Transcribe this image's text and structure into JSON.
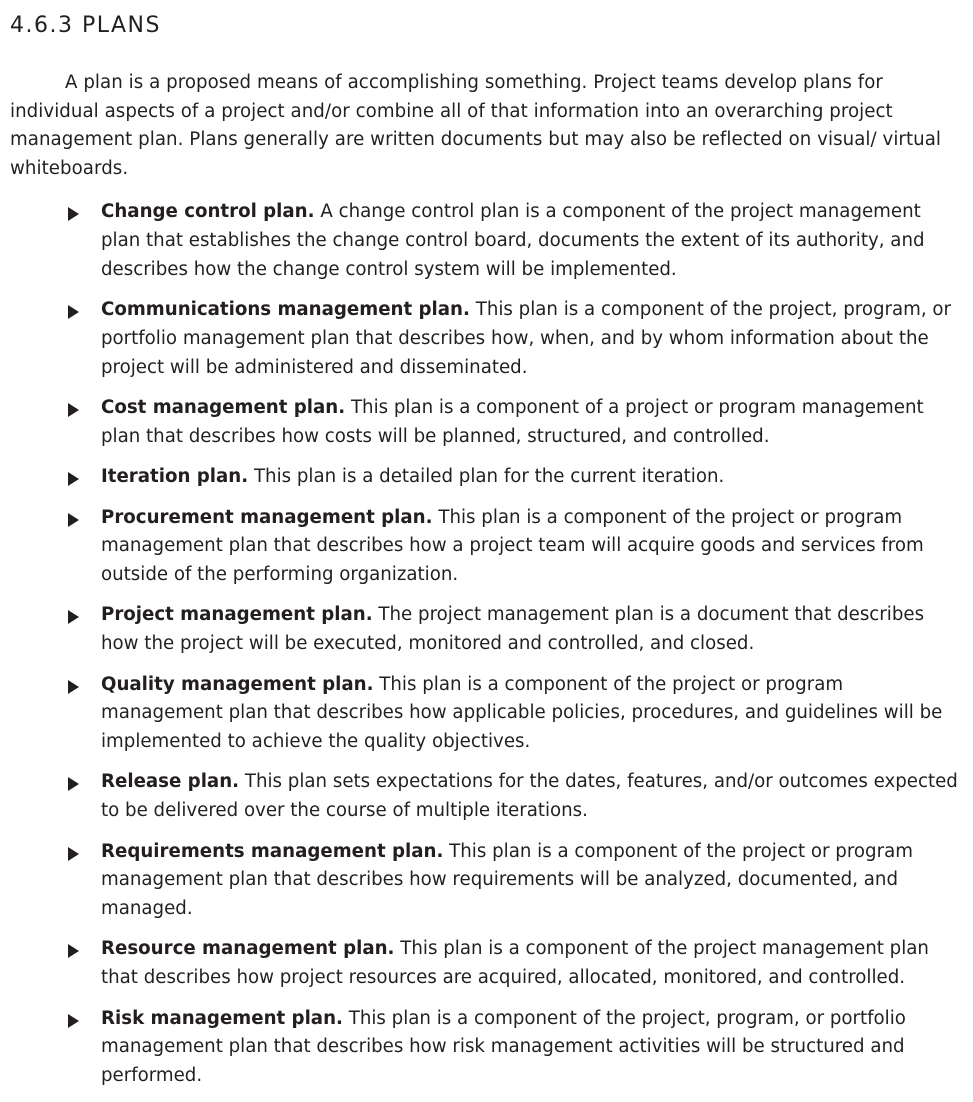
{
  "section": {
    "heading": "4.6.3 PLANS",
    "intro": "A plan is a proposed means of accomplishing something. Project teams develop plans for individual aspects of a project and/or combine all of that information into an overarching project management plan. Plans generally are written documents but may also be reflected on visual/ virtual whiteboards."
  },
  "plans": [
    {
      "term": "Change control plan.",
      "definition": "A change control plan is a component of the project management plan that establishes the change control board, documents the extent of its authority, and describes how the change control system will be implemented."
    },
    {
      "term": "Communications management plan.",
      "definition": "This plan is a component of the project, program, or portfolio management plan that describes how, when, and by whom information about the project will be administered and disseminated."
    },
    {
      "term": "Cost management plan.",
      "definition": "This plan is a component of a project or program management plan that describes how costs will be planned, structured, and controlled."
    },
    {
      "term": "Iteration plan.",
      "definition": "This plan is a detailed plan for the current iteration."
    },
    {
      "term": "Procurement management plan.",
      "definition": "This plan is a component of the project or program management plan that describes how a project team will acquire goods and services from outside of the performing organization."
    },
    {
      "term": "Project management plan.",
      "definition": "The project management plan is a document that describes how the project will be executed, monitored and controlled, and closed."
    },
    {
      "term": "Quality management plan.",
      "definition": "This plan is a component of the project or program management plan that describes how applicable policies, procedures, and guidelines will be implemented to achieve the quality objectives."
    },
    {
      "term": "Release plan.",
      "definition": "This plan sets expectations for the dates, features, and/or outcomes expected to be delivered over the course of multiple iterations."
    },
    {
      "term": "Requirements management plan.",
      "definition": "This plan is a component of the project or program management plan that describes how requirements will be analyzed, documented, and managed."
    },
    {
      "term": "Resource management plan.",
      "definition": "This plan is a component of the project management plan that describes how project resources are acquired, allocated, monitored, and controlled."
    },
    {
      "term": "Risk management plan.",
      "definition": "This plan is a component of the project, program, or portfolio management plan that describes how risk management activities will be structured and performed."
    }
  ]
}
